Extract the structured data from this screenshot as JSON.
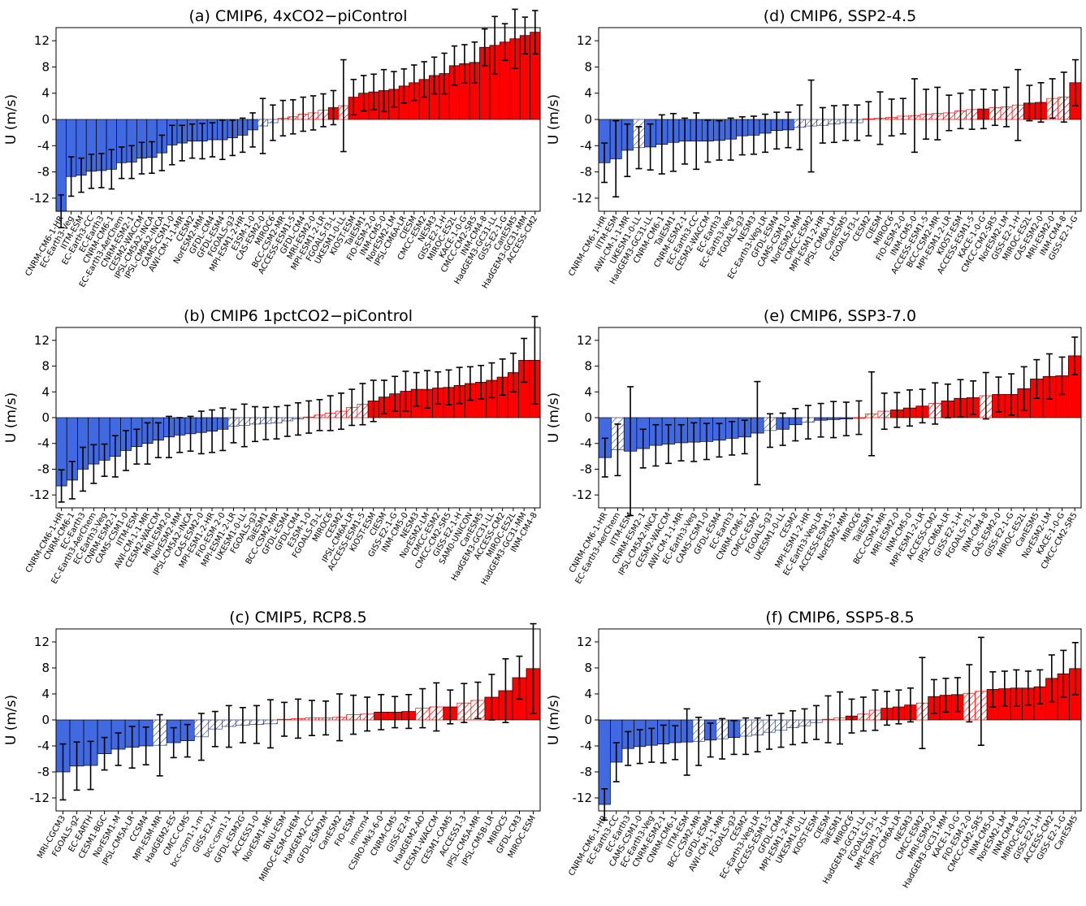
{
  "chart_data": [
    {
      "type": "bar",
      "title": "(a) CMIP6, 4xCO2−piControl",
      "ylabel": "U (m/s)",
      "ylim": [
        -14,
        14
      ],
      "yticks": [
        12,
        8,
        4,
        0,
        -4,
        -8,
        -12
      ],
      "categories": [
        "CNRM-CM6-1-HR",
        "EC-Earth3-Veg",
        "IITM-ESM",
        "EC-Earth3-CC",
        "EC-Earth3",
        "CNRM-CM6-1",
        "EC-Earth3-AerChem",
        "CNRM-ESM2-1",
        "CESM2-WACCM",
        "IPSL-CM5A2-INCA",
        "IPSL-CM6A2-INCA",
        "CAMS-CSM1-0",
        "AWI-CM-1-1-MR",
        "CESM2",
        "NorESM2-MM",
        "GFDL-CM4",
        "GFDL-ESM4",
        "FGOALS-g3",
        "MPI-ESM1-2-HR",
        "E3SM-1-0",
        "CAS-ESM2-0",
        "MIROC6",
        "BCC-CSM2-MR",
        "ACCESS-ESM1-5",
        "GFDL-CM4",
        "MRI-ESM2-0",
        "MPI-ESM1-2-LR",
        "FGOALS-f3-L",
        "UKESM1-0-LL",
        "KIOST-ESM",
        "TaiESM1",
        "FIO-ESM-2-0",
        "INM-CM5-0",
        "NorESM2-LM",
        "IPSL-CM6A-LR",
        "CIESM",
        "CMCC-ESM2",
        "NESM3",
        "GISS-E2-1-H",
        "MIROC-ES2L",
        "KACE-1-0-G",
        "CMCC-CM2-SR5",
        "INM-CM4-8",
        "HadGEM3-GC31-LL",
        "GISS-E2-1-G",
        "CanESM5",
        "HadGEM3-GC31-MM",
        "ACCESS-CM2"
      ],
      "values": [
        -14.0,
        -8.7,
        -8.5,
        -7.9,
        -7.8,
        -7.6,
        -6.6,
        -6.5,
        -5.9,
        -5.8,
        -5.1,
        -3.9,
        -3.6,
        -3.3,
        -3.3,
        -3.1,
        -3.1,
        -2.8,
        -2.4,
        -1.6,
        -1.0,
        -0.5,
        0.2,
        0.4,
        0.8,
        1.0,
        1.4,
        1.8,
        2.1,
        3.4,
        4.0,
        4.2,
        4.4,
        4.6,
        5.1,
        5.6,
        6.1,
        6.7,
        7.0,
        8.2,
        8.5,
        8.7,
        11.0,
        11.3,
        11.8,
        12.3,
        12.8,
        13.3
      ],
      "hatched": [
        false,
        false,
        false,
        false,
        false,
        false,
        false,
        false,
        false,
        false,
        false,
        false,
        false,
        false,
        false,
        false,
        false,
        false,
        false,
        false,
        true,
        true,
        true,
        true,
        true,
        true,
        true,
        false,
        true,
        false,
        false,
        false,
        false,
        false,
        false,
        false,
        false,
        false,
        false,
        false,
        false,
        false,
        false,
        false,
        false,
        false,
        false,
        false
      ],
      "errors": [
        2.5,
        3.0,
        2.6,
        2.6,
        2.6,
        3.0,
        2.4,
        2.5,
        2.4,
        2.4,
        2.7,
        3.0,
        2.7,
        2.6,
        2.7,
        2.6,
        3.0,
        2.7,
        2.6,
        2.6,
        4.2,
        2.7,
        2.7,
        2.6,
        2.6,
        2.6,
        2.5,
        2.6,
        7.0,
        2.7,
        2.7,
        2.7,
        3.2,
        2.7,
        2.6,
        2.7,
        2.7,
        2.8,
        3.1,
        3.0,
        2.9,
        3.1,
        2.8,
        4.4,
        2.8,
        4.5,
        2.8,
        3.3
      ]
    },
    {
      "type": "bar",
      "title": "(b) CMIP6 1pctCO2−piControl",
      "ylabel": "U (m/s)",
      "ylim": [
        -14,
        14
      ],
      "yticks": [
        12,
        8,
        4,
        0,
        -4,
        -8,
        -12
      ],
      "categories": [
        "CNRM-CM6-1-HR",
        "CNRM-CM6-1",
        "EC-Earth3",
        "EC-Earth3-AerChem",
        "EC-Earth3-Veg",
        "CNRM-ESM2-1",
        "CAMS-CSM1-0",
        "IITM-ESM",
        "AWI-CM-1-1-MR",
        "CESM2-WACCM",
        "MRI-ESM2-0",
        "NorESM2-MM",
        "IPSL-CM5A2-INCA",
        "CAS-ESM2-0",
        "MPI-ESM1-2-HR",
        "FIO-ESM-2-0",
        "MPI-ESM1-2-LR",
        "UKESM1-0-LL",
        "FGOALS-g3",
        "TaiESM1",
        "BCC-CSM2-MR",
        "GFDL-ESM4",
        "GFDL-CM4",
        "E3SM-1-0",
        "FGOALS-f3-L",
        "MIROC6",
        "CESM2",
        "IPSL-CM6A-LR",
        "ACCESS-ESM1-5",
        "KIOST-ESM",
        "CIESM",
        "GISS-E2-1-G",
        "INM-CM5-0",
        "NESM3",
        "NorESM2-LM",
        "CMCC-ESM2",
        "CMCC-CM2-SR5",
        "GISS-E2-1-H",
        "SAM0-UNICON",
        "CanESM5",
        "HadGEM3-GC31-LL",
        "ACCESS-CM2",
        "MIROC-ES2L",
        "HadGEM3-GC31-MM",
        "INM-CM4-8"
      ],
      "values": [
        -10.6,
        -9.7,
        -8.0,
        -7.2,
        -6.6,
        -6.0,
        -5.1,
        -4.5,
        -4.0,
        -3.5,
        -3.0,
        -2.7,
        -2.5,
        -2.3,
        -2.1,
        -1.8,
        -1.3,
        -1.2,
        -1.0,
        -0.9,
        -0.8,
        -0.5,
        -0.2,
        0.1,
        0.4,
        0.7,
        1.0,
        1.6,
        2.1,
        2.6,
        3.2,
        3.7,
        4.1,
        4.4,
        4.4,
        4.6,
        4.7,
        5.0,
        5.3,
        5.5,
        5.8,
        6.3,
        7.0,
        8.9,
        8.9
      ],
      "hatched": [
        false,
        false,
        false,
        false,
        false,
        false,
        false,
        false,
        false,
        false,
        false,
        false,
        false,
        false,
        false,
        false,
        true,
        true,
        true,
        true,
        true,
        true,
        true,
        true,
        true,
        true,
        true,
        true,
        true,
        false,
        false,
        false,
        false,
        false,
        false,
        false,
        false,
        false,
        false,
        false,
        false,
        false,
        false,
        false,
        false
      ],
      "errors": [
        2.5,
        2.9,
        3.4,
        3.0,
        2.5,
        3.2,
        3.1,
        2.7,
        3.2,
        2.7,
        3.2,
        2.7,
        2.7,
        3.3,
        3.3,
        3.3,
        2.6,
        3.3,
        2.7,
        2.5,
        2.5,
        2.4,
        2.5,
        2.5,
        2.4,
        2.7,
        2.8,
        2.8,
        3.2,
        3.2,
        2.6,
        2.7,
        3.1,
        2.6,
        2.9,
        2.5,
        2.7,
        2.8,
        2.6,
        2.6,
        2.7,
        2.8,
        3.0,
        3.4,
        6.8
      ]
    },
    {
      "type": "bar",
      "title": "(c) CMIP5, RCP8.5",
      "ylabel": "U (m/s)",
      "ylim": [
        -14,
        14
      ],
      "yticks": [
        12,
        8,
        4,
        0,
        -4,
        -8,
        -12
      ],
      "categories": [
        "MRI-CGCM3",
        "FGOALS-g2",
        "EC-EARTH",
        "CESM1-BGC",
        "NorESM1-M",
        "IPSL-CM5A-LR",
        "CCSM4",
        "MPI-ESM-MR",
        "HadGEM2-ES",
        "CMCC-CMS",
        "bcc-csm1-1-m",
        "GISS-E2-H",
        "bcc-csm1-1",
        "GFDL-ESM2G",
        "ACCESS1-0",
        "NorESM1-ME",
        "BNU-ESM",
        "MIROC-ESM-CHEM",
        "HadGEM2-CC",
        "GFDL-ESM2M",
        "CanESM2",
        "FIO-ESM",
        "inmcm4",
        "CSIRO-Mk3-6-0",
        "CNRM-CM5",
        "GISS-E2-R",
        "HadGEM2-AO",
        "CESM1-WACCM",
        "CESM1-CAM5",
        "ACCESS1-3",
        "IPSL-CM5A-MR",
        "IPSL-CM5B-LR",
        "MIROC5",
        "GFDL-CM3",
        "MIROC-ESM"
      ],
      "values": [
        -8.0,
        -7.1,
        -7.0,
        -5.2,
        -4.5,
        -4.2,
        -4.0,
        -3.9,
        -3.5,
        -3.2,
        -2.6,
        -1.4,
        -1.0,
        -0.8,
        -0.7,
        -0.6,
        0.1,
        0.2,
        0.3,
        0.3,
        0.4,
        0.8,
        0.9,
        1.2,
        1.2,
        1.3,
        1.8,
        2.0,
        2.0,
        2.6,
        3.0,
        3.5,
        4.5,
        6.5,
        7.9
      ],
      "hatched": [
        false,
        false,
        false,
        false,
        false,
        false,
        false,
        true,
        false,
        false,
        true,
        true,
        true,
        true,
        true,
        true,
        true,
        true,
        true,
        true,
        true,
        true,
        true,
        false,
        false,
        false,
        true,
        true,
        false,
        true,
        true,
        false,
        false,
        false,
        false
      ],
      "errors": [
        4.3,
        3.7,
        3.7,
        2.5,
        2.5,
        3.2,
        2.9,
        4.7,
        2.3,
        2.5,
        3.6,
        2.7,
        3.2,
        2.7,
        2.9,
        3.7,
        2.6,
        3.0,
        2.7,
        2.6,
        3.6,
        3.0,
        2.6,
        2.7,
        2.4,
        2.6,
        3.0,
        3.7,
        2.6,
        3.0,
        2.8,
        3.5,
        4.9,
        3.3,
        6.9
      ]
    },
    {
      "type": "bar",
      "title": "(d) CMIP6, SSP2-4.5",
      "ylabel": "U (m/s)",
      "ylim": [
        -14,
        14
      ],
      "yticks": [
        12,
        8,
        4,
        0,
        -4,
        -8,
        -12
      ],
      "categories": [
        "CNRM-CM6-1-HR",
        "IITM-ESM",
        "AWI-CM-1-1-MR",
        "UKESM1-0-LL",
        "HadGEM3-GC31-LL",
        "CNRM-CM6-1",
        "TaiESM1",
        "CNRM-ESM2-1",
        "EC-Earth3-CC",
        "CESM2-WACCM",
        "EC-Earth3",
        "EC-Earth3-Veg",
        "FGOALS-g3",
        "NESM3",
        "EC-Earth3-Veg-LR",
        "GFDL-ESM4",
        "CAMS-CSM1-0",
        "NorESM2-MM",
        "CMCC-ESM2",
        "MPI-ESM1-2-HR",
        "IPSL-CM6A-LR",
        "CanESM5",
        "FGOALS-f3-L",
        "CESM2",
        "CIESM",
        "MIROC6",
        "FIO-ESM-2-0",
        "INM-CM5-0",
        "ACCESS-ESM1-5",
        "BCC-CSM2-MR",
        "MPI-ESM1-2-LR",
        "KIOST-ESM",
        "ACCESS-ESM1-5",
        "KACE-1-0-G",
        "CMCC-CM2-SR5",
        "NorESM2-LM",
        "GISS-E2-1-H",
        "MIROC-ES2L",
        "CAS-ESM2-0",
        "MRI-ESM2-0",
        "INM-CM4-8",
        "GISS-E2-1-G"
      ],
      "values": [
        -6.6,
        -6.0,
        -4.7,
        -4.3,
        -4.2,
        -3.8,
        -3.5,
        -3.3,
        -3.3,
        -3.3,
        -3.2,
        -3.0,
        -2.5,
        -2.4,
        -2.1,
        -1.7,
        -1.6,
        -1.2,
        -1.0,
        -0.9,
        -0.7,
        -0.5,
        -0.5,
        0.1,
        0.2,
        0.3,
        0.5,
        0.6,
        0.8,
        0.9,
        1.0,
        1.3,
        1.5,
        1.6,
        1.8,
        1.9,
        2.2,
        2.5,
        2.6,
        3.2,
        3.4,
        5.6
      ],
      "hatched": [
        false,
        false,
        false,
        true,
        false,
        false,
        false,
        false,
        false,
        false,
        false,
        false,
        false,
        false,
        false,
        false,
        false,
        true,
        true,
        true,
        true,
        true,
        true,
        true,
        true,
        true,
        true,
        true,
        true,
        true,
        true,
        true,
        true,
        false,
        true,
        true,
        true,
        false,
        false,
        true,
        true,
        false
      ],
      "errors": [
        3.0,
        5.8,
        4.0,
        3.2,
        3.5,
        4.5,
        4.4,
        3.5,
        4.3,
        3.2,
        3.0,
        3.2,
        2.9,
        2.9,
        2.9,
        2.8,
        2.7,
        3.4,
        7.0,
        2.7,
        2.8,
        2.7,
        2.7,
        2.6,
        4.0,
        2.8,
        2.7,
        5.6,
        3.8,
        4.0,
        2.7,
        2.7,
        3.0,
        3.0,
        2.7,
        3.0,
        5.4,
        2.7,
        3.0,
        3.0,
        3.8,
        3.5
      ]
    },
    {
      "type": "bar",
      "title": "(e) CMIP6, SSP3-7.0",
      "ylabel": "U (m/s)",
      "ylim": [
        -14,
        14
      ],
      "yticks": [
        12,
        8,
        4,
        0,
        -4,
        -8,
        -12
      ],
      "categories": [
        "CNRM-CM6-1-HR",
        "EC-Earth3-AerChem",
        "IITM-ESM",
        "CNRM-ESM2-1",
        "IPSL-CM5A2-INCA",
        "CESM2-WACCM",
        "AWI-CM-1-1-MR",
        "EC-Earth3-Veg",
        "CAMS-CSM1-0",
        "GFDL-ESM4",
        "EC-Earth3",
        "CNRM-CM6-1",
        "CMCC-ESM2",
        "FGOALS-g3",
        "UKESM1-0-LL",
        "CESM2",
        "MPI-ESM1-2-HR",
        "EC-Earth3-Veg-LR",
        "ACCESS-ESM1-5",
        "NorESM2-MM",
        "MIROC6",
        "TaiESM1",
        "BCC-CSM2-MR",
        "MRI-ESM2-0",
        "INM-CM5-0",
        "MPI-ESM1-2-LR",
        "ACCESS-CM2",
        "IPSL-CM6A-LR",
        "GISS-E2-1-H",
        "FGOALS-f3-L",
        "INM-CM4-8",
        "CAS-ESM2-0",
        "GISS-E2-1-G",
        "MIROC-ES2L",
        "CanESM5",
        "NorESM2-LM",
        "KACE-1-0-G",
        "CMCC-CM2-SR5"
      ],
      "values": [
        -6.2,
        -5.0,
        -5.2,
        -4.8,
        -4.3,
        -4.1,
        -3.9,
        -3.8,
        -3.7,
        -3.5,
        -3.2,
        -3.0,
        -2.4,
        -2.0,
        -1.8,
        -1.1,
        -0.7,
        -0.4,
        -0.3,
        -0.2,
        0.0,
        0.6,
        1.0,
        1.2,
        1.5,
        1.8,
        2.2,
        2.6,
        3.0,
        3.1,
        3.4,
        3.6,
        3.6,
        4.5,
        6.0,
        6.4,
        6.5,
        9.6
      ],
      "hatched": [
        false,
        true,
        false,
        false,
        false,
        false,
        false,
        false,
        false,
        false,
        false,
        false,
        false,
        true,
        false,
        false,
        true,
        false,
        false,
        false,
        true,
        true,
        true,
        false,
        false,
        false,
        true,
        false,
        false,
        false,
        true,
        false,
        false,
        false,
        false,
        false,
        false,
        false
      ],
      "errors": [
        3.0,
        4.0,
        10.0,
        3.0,
        3.2,
        3.0,
        2.8,
        3.0,
        2.8,
        2.6,
        2.6,
        2.6,
        8.0,
        2.6,
        2.5,
        2.5,
        2.6,
        2.6,
        2.8,
        2.6,
        2.6,
        6.5,
        2.8,
        2.7,
        2.8,
        2.6,
        3.2,
        2.6,
        2.9,
        2.6,
        3.6,
        2.7,
        3.2,
        3.4,
        3.0,
        3.5,
        2.9,
        2.9
      ]
    },
    {
      "type": "bar",
      "title": "(f) CMIP6, SSP5-8.5",
      "ylabel": "U (m/s)",
      "ylim": [
        -14,
        14
      ],
      "yticks": [
        12,
        8,
        4,
        0,
        -4,
        -8,
        -12
      ],
      "categories": [
        "CNRM-CM6-1-HR",
        "EC-Earth3-CC",
        "EC-Earth3",
        "CAMS-CSM1-0",
        "EC-Earth3-Veg",
        "CNRM-ESM2-1",
        "CNRM-CM6-1",
        "IITM-ESM",
        "BCC-CSM2-MR",
        "GFDL-ESM4",
        "AWI-CM-1-1-MR",
        "FGOALS-g3",
        "CESM2",
        "EC-Earth3-Veg-LR",
        "ACCESS-ESM1-5",
        "GFDL-CM4",
        "MPI-ESM1-2-HR",
        "UKESM1-0-LL",
        "KIOST-ESM",
        "CIESM",
        "TaiESM1",
        "MIROC6",
        "HadGEM3-GC31-LL",
        "FGOALS-f3-L",
        "MPI-ESM1-2-LR",
        "IPSL-CM6A-LR",
        "NESM3",
        "CMCC-ESM2",
        "MRI-ESM2-0",
        "HadGEM3-GC31-MM",
        "KACE-1-0-G",
        "FIO-ESM-2-0",
        "CMCC-CM2-SR5",
        "INM-CM5-0",
        "NorESM2-LM",
        "INM-CM4-8",
        "MIROC-ES2L",
        "GISS-E2-1-H",
        "ACCESS-CM2",
        "GISS-E2-1-G",
        "CanESM5"
      ],
      "values": [
        -13.0,
        -6.5,
        -4.4,
        -4.1,
        -3.9,
        -3.7,
        -3.5,
        -3.4,
        -3.3,
        -3.1,
        -2.9,
        -2.7,
        -2.5,
        -2.3,
        -1.9,
        -1.6,
        -1.2,
        -0.9,
        -0.4,
        0.1,
        0.3,
        0.6,
        0.9,
        1.5,
        1.8,
        2.0,
        2.3,
        2.6,
        3.6,
        3.8,
        3.9,
        4.1,
        4.4,
        4.7,
        4.8,
        4.9,
        4.9,
        5.1,
        6.4,
        7.1,
        7.9
      ],
      "hatched": [
        false,
        false,
        false,
        false,
        false,
        false,
        false,
        false,
        true,
        false,
        true,
        false,
        true,
        true,
        true,
        true,
        true,
        true,
        true,
        true,
        true,
        false,
        true,
        true,
        false,
        false,
        false,
        true,
        false,
        false,
        false,
        true,
        true,
        false,
        false,
        false,
        false,
        false,
        false,
        false,
        false
      ],
      "errors": [
        2.4,
        3.0,
        2.6,
        2.6,
        2.6,
        2.9,
        2.6,
        5.1,
        3.7,
        2.6,
        3.1,
        2.6,
        2.8,
        2.6,
        2.6,
        2.6,
        2.6,
        2.6,
        2.6,
        3.6,
        4.0,
        2.6,
        2.6,
        3.1,
        2.6,
        2.6,
        2.6,
        7.0,
        2.6,
        2.6,
        2.6,
        4.4,
        8.3,
        2.7,
        2.7,
        2.8,
        2.6,
        2.6,
        3.6,
        3.6,
        4.0
      ]
    }
  ]
}
